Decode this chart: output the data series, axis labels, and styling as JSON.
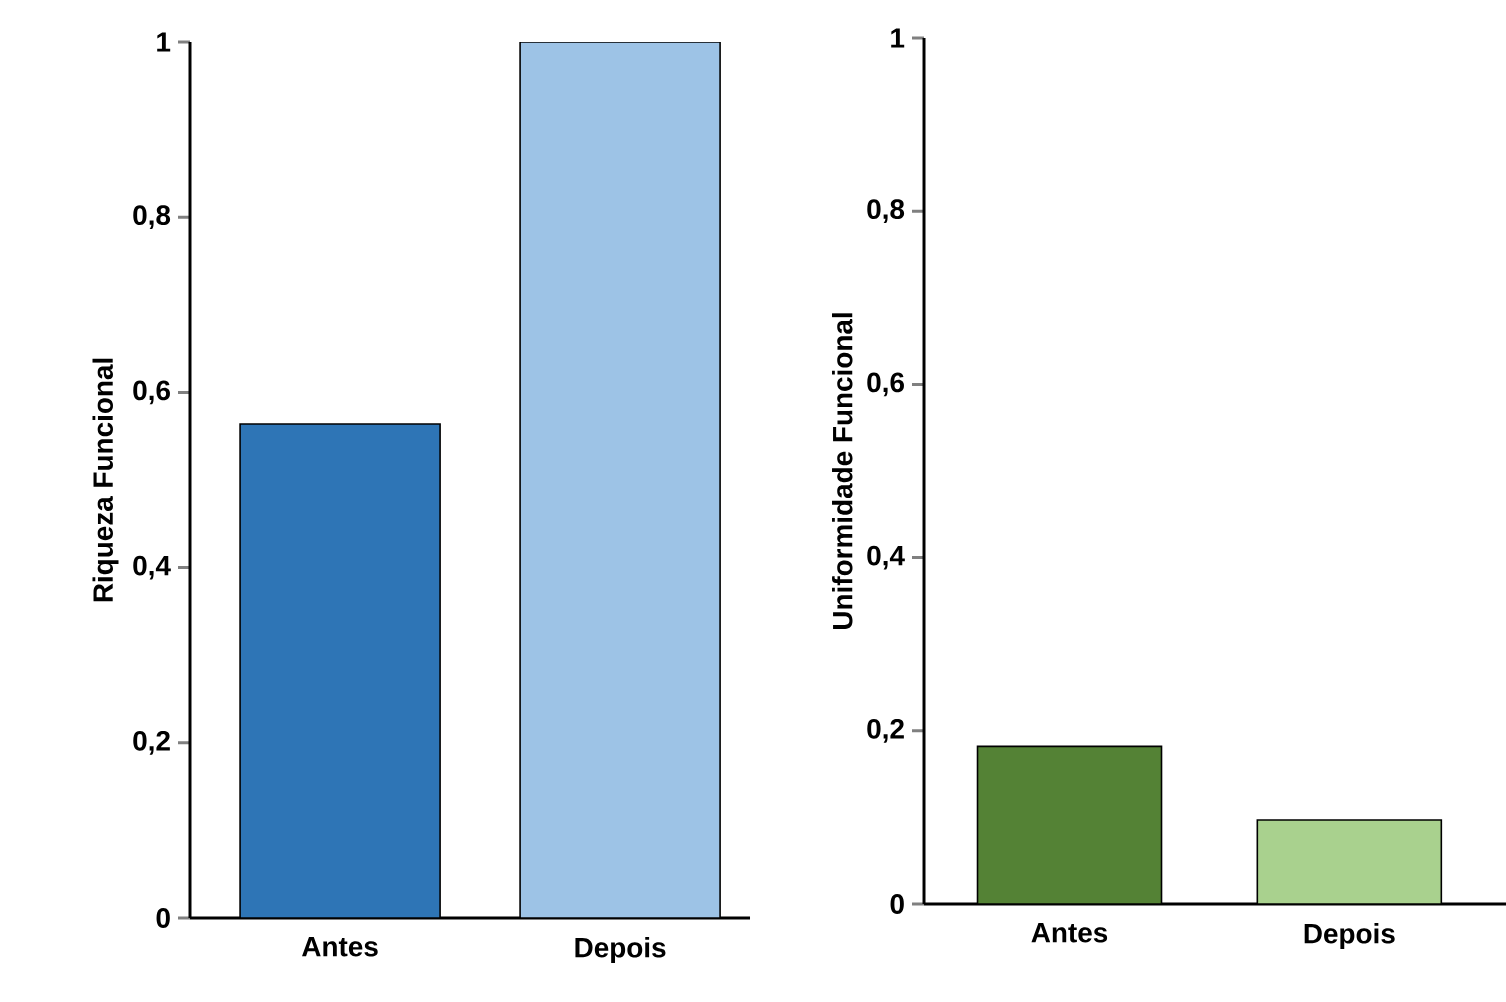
{
  "chart_data": [
    {
      "type": "bar",
      "ylabel": "Riqueza Funcional",
      "categories": [
        "Antes",
        "Depois"
      ],
      "values": [
        0.564,
        1.0
      ],
      "colors": [
        "#2e75b6",
        "#9dc3e6"
      ],
      "ylim": [
        0,
        1
      ],
      "yticks": [
        0,
        {
          "value": 0.2,
          "label": "0,2"
        },
        {
          "value": 0.4,
          "label": "0,4"
        },
        {
          "value": 0.6,
          "label": "0,6"
        },
        {
          "value": 0.8,
          "label": "0,8"
        },
        1
      ]
    },
    {
      "type": "bar",
      "ylabel": "Uniformidade Funcional",
      "categories": [
        "Antes",
        "Depois"
      ],
      "values": [
        0.182,
        0.097
      ],
      "colors": [
        "#548235",
        "#a9d18e"
      ],
      "ylim": [
        0,
        1
      ],
      "yticks": [
        0,
        {
          "value": 0.2,
          "label": "0,2"
        },
        {
          "value": 0.4,
          "label": "0,4"
        },
        {
          "value": 0.6,
          "label": "0,6"
        },
        {
          "value": 0.8,
          "label": "0,8"
        },
        1
      ]
    }
  ]
}
